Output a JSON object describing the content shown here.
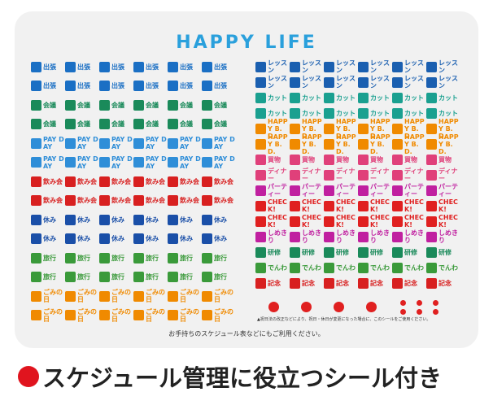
{
  "sheet": {
    "title": "HAPPY LIFE",
    "left_rows": [
      {
        "label": "出張",
        "color": "#1a6fc4"
      },
      {
        "label": "出張",
        "color": "#1a6fc4"
      },
      {
        "label": "会議",
        "color": "#1a8a5a"
      },
      {
        "label": "会議",
        "color": "#1a8a5a"
      },
      {
        "label": "PAY DAY",
        "color": "#2f8ed8"
      },
      {
        "label": "PAY DAY",
        "color": "#2f8ed8"
      },
      {
        "label": "飲み会",
        "color": "#d82020"
      },
      {
        "label": "飲み会",
        "color": "#d82020"
      },
      {
        "label": "休み",
        "color": "#1a4fa8"
      },
      {
        "label": "休み",
        "color": "#1a4fa8"
      },
      {
        "label": "旅行",
        "color": "#3a9a3a"
      },
      {
        "label": "旅行",
        "color": "#3a9a3a"
      },
      {
        "label": "ごみの日",
        "color": "#f08a00"
      },
      {
        "label": "ごみの日",
        "color": "#f08a00"
      }
    ],
    "right_rows": [
      {
        "label": "レッスン",
        "color": "#1a5fb0"
      },
      {
        "label": "レッスン",
        "color": "#1a5fb0"
      },
      {
        "label": "カット",
        "color": "#1aa090"
      },
      {
        "label": "カット",
        "color": "#1aa090"
      },
      {
        "label": "HAPPY B.D.",
        "color": "#f08a00"
      },
      {
        "label": "HAPPY B.D.",
        "color": "#f08a00"
      },
      {
        "label": "買物",
        "color": "#e0407a"
      },
      {
        "label": "ディナー",
        "color": "#e0407a"
      },
      {
        "label": "パーティー",
        "color": "#c020a0"
      },
      {
        "label": "CHECK!",
        "color": "#e02020"
      },
      {
        "label": "CHECK!",
        "color": "#e02020"
      },
      {
        "label": "しめきり",
        "color": "#c020a0"
      },
      {
        "label": "研修",
        "color": "#1a8a5a"
      },
      {
        "label": "でんわ",
        "color": "#3a9a3a"
      },
      {
        "label": "記念",
        "color": "#d82020"
      }
    ],
    "holiday_note": "▲祝日法の改正などにより、祝日・休日が変更になった場合に、このシールをご使用ください。",
    "usage_note": "お手持ちのスケジュール表などにもご利用ください。",
    "caption": "スケジュール管理に役立つシール付き"
  }
}
